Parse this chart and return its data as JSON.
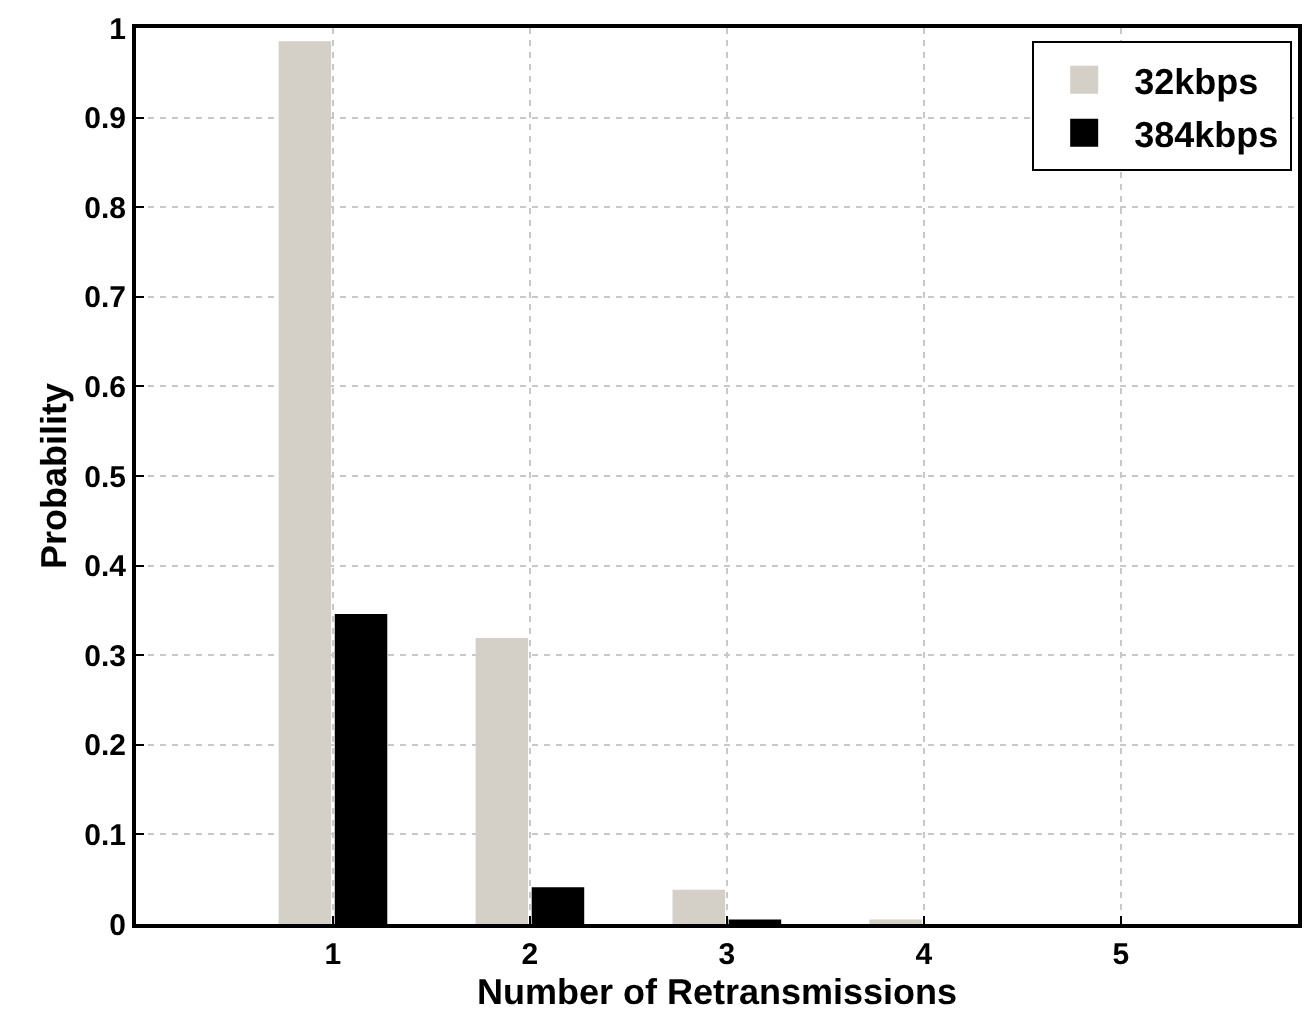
{
  "chart_data": {
    "type": "bar",
    "xlabel": "Number of Retransmissions",
    "ylabel": "Probability",
    "x": [
      1,
      2,
      3,
      4,
      5
    ],
    "series": [
      {
        "name": "32kbps",
        "color": "#d4d0c8",
        "values": [
          0.984,
          0.318,
          0.037,
          0.004,
          0
        ]
      },
      {
        "name": "384kbps",
        "color": "#000000",
        "values": [
          0.345,
          0.04,
          0.004,
          0,
          0
        ]
      }
    ],
    "xlim": [
      0,
      5.9
    ],
    "xticks": [
      1,
      2,
      3,
      4,
      5
    ],
    "ylim": [
      0,
      1
    ],
    "yticks": [
      0,
      0.1,
      0.2,
      0.3,
      0.4,
      0.5,
      0.6,
      0.7,
      0.8,
      0.9,
      1
    ],
    "grid": true,
    "legend": "top right"
  }
}
